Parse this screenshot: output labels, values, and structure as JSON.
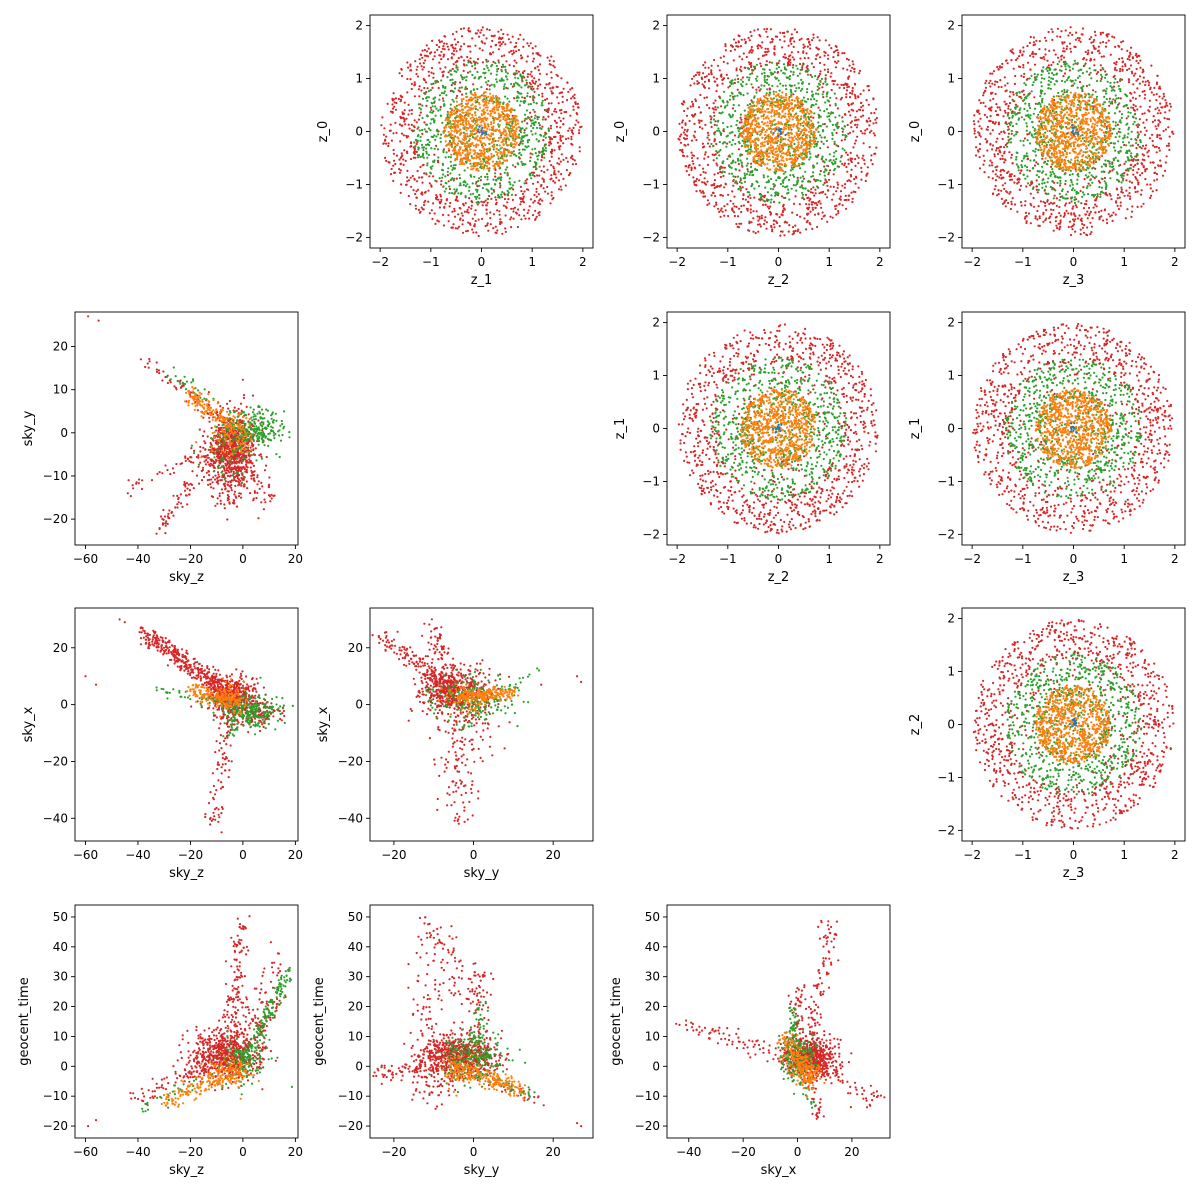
{
  "palette": {
    "cyan": "#1f77b4",
    "orange": "#ff7f0e",
    "green": "#2ca02c",
    "red": "#d62728",
    "axis": "#000000",
    "background": "#ffffff"
  },
  "chart_data": [
    {
      "type": "scatter",
      "row": 0,
      "col": 1,
      "xlabel": "z_1",
      "ylabel": "z_0",
      "shape": "disk",
      "xlim": [
        -2.2,
        2.2
      ],
      "ylim": [
        -2.2,
        2.2
      ],
      "xticks": [
        -2,
        -1,
        0,
        1,
        2
      ],
      "yticks": [
        -2,
        -1,
        0,
        1,
        2
      ]
    },
    {
      "type": "scatter",
      "row": 0,
      "col": 2,
      "xlabel": "z_2",
      "ylabel": "z_0",
      "shape": "disk",
      "xlim": [
        -2.2,
        2.2
      ],
      "ylim": [
        -2.2,
        2.2
      ],
      "xticks": [
        -2,
        -1,
        0,
        1,
        2
      ],
      "yticks": [
        -2,
        -1,
        0,
        1,
        2
      ]
    },
    {
      "type": "scatter",
      "row": 0,
      "col": 3,
      "xlabel": "z_3",
      "ylabel": "z_0",
      "shape": "disk",
      "xlim": [
        -2.2,
        2.2
      ],
      "ylim": [
        -2.2,
        2.2
      ],
      "xticks": [
        -2,
        -1,
        0,
        1,
        2
      ],
      "yticks": [
        -2,
        -1,
        0,
        1,
        2
      ]
    },
    {
      "type": "scatter",
      "row": 1,
      "col": 0,
      "xlabel": "sky_z",
      "ylabel": "sky_y",
      "shape": "sky_zy",
      "xlim": [
        -64,
        21
      ],
      "ylim": [
        -26,
        28
      ],
      "xticks": [
        -60,
        -40,
        -20,
        0,
        20
      ],
      "yticks": [
        -20,
        -10,
        0,
        10,
        20
      ]
    },
    {
      "type": "scatter",
      "row": 1,
      "col": 2,
      "xlabel": "z_2",
      "ylabel": "z_1",
      "shape": "disk",
      "xlim": [
        -2.2,
        2.2
      ],
      "ylim": [
        -2.2,
        2.2
      ],
      "xticks": [
        -2,
        -1,
        0,
        1,
        2
      ],
      "yticks": [
        -2,
        -1,
        0,
        1,
        2
      ]
    },
    {
      "type": "scatter",
      "row": 1,
      "col": 3,
      "xlabel": "z_3",
      "ylabel": "z_1",
      "shape": "disk",
      "xlim": [
        -2.2,
        2.2
      ],
      "ylim": [
        -2.2,
        2.2
      ],
      "xticks": [
        -2,
        -1,
        0,
        1,
        2
      ],
      "yticks": [
        -2,
        -1,
        0,
        1,
        2
      ]
    },
    {
      "type": "scatter",
      "row": 2,
      "col": 0,
      "xlabel": "sky_z",
      "ylabel": "sky_x",
      "shape": "sky_zx",
      "xlim": [
        -64,
        21
      ],
      "ylim": [
        -48,
        34
      ],
      "xticks": [
        -60,
        -40,
        -20,
        0,
        20
      ],
      "yticks": [
        -40,
        -20,
        0,
        20
      ]
    },
    {
      "type": "scatter",
      "row": 2,
      "col": 1,
      "xlabel": "sky_y",
      "ylabel": "sky_x",
      "shape": "sky_yx",
      "xlim": [
        -26,
        30
      ],
      "ylim": [
        -48,
        34
      ],
      "xticks": [
        -20,
        0,
        20
      ],
      "yticks": [
        -40,
        -20,
        0,
        20
      ]
    },
    {
      "type": "scatter",
      "row": 2,
      "col": 3,
      "xlabel": "z_3",
      "ylabel": "z_2",
      "shape": "disk",
      "xlim": [
        -2.2,
        2.2
      ],
      "ylim": [
        -2.2,
        2.2
      ],
      "xticks": [
        -2,
        -1,
        0,
        1,
        2
      ],
      "yticks": [
        -2,
        -1,
        0,
        1,
        2
      ]
    },
    {
      "type": "scatter",
      "row": 3,
      "col": 0,
      "xlabel": "sky_z",
      "ylabel": "geocent_time",
      "shape": "sky_zt",
      "xlim": [
        -64,
        21
      ],
      "ylim": [
        -24,
        54
      ],
      "xticks": [
        -60,
        -40,
        -20,
        0,
        20
      ],
      "yticks": [
        -20,
        -10,
        0,
        10,
        20,
        30,
        40,
        50
      ]
    },
    {
      "type": "scatter",
      "row": 3,
      "col": 1,
      "xlabel": "sky_y",
      "ylabel": "geocent_time",
      "shape": "sky_yt",
      "xlim": [
        -26,
        30
      ],
      "ylim": [
        -24,
        54
      ],
      "xticks": [
        -20,
        0,
        20
      ],
      "yticks": [
        -20,
        -10,
        0,
        10,
        20,
        30,
        40,
        50
      ]
    },
    {
      "type": "scatter",
      "row": 3,
      "col": 2,
      "xlabel": "sky_x",
      "ylabel": "geocent_time",
      "shape": "sky_xt",
      "xlim": [
        -48,
        34
      ],
      "ylim": [
        -24,
        54
      ],
      "xticks": [
        -40,
        -20,
        0,
        20
      ],
      "yticks": [
        -20,
        -10,
        0,
        10,
        20,
        30,
        40,
        50
      ]
    }
  ]
}
